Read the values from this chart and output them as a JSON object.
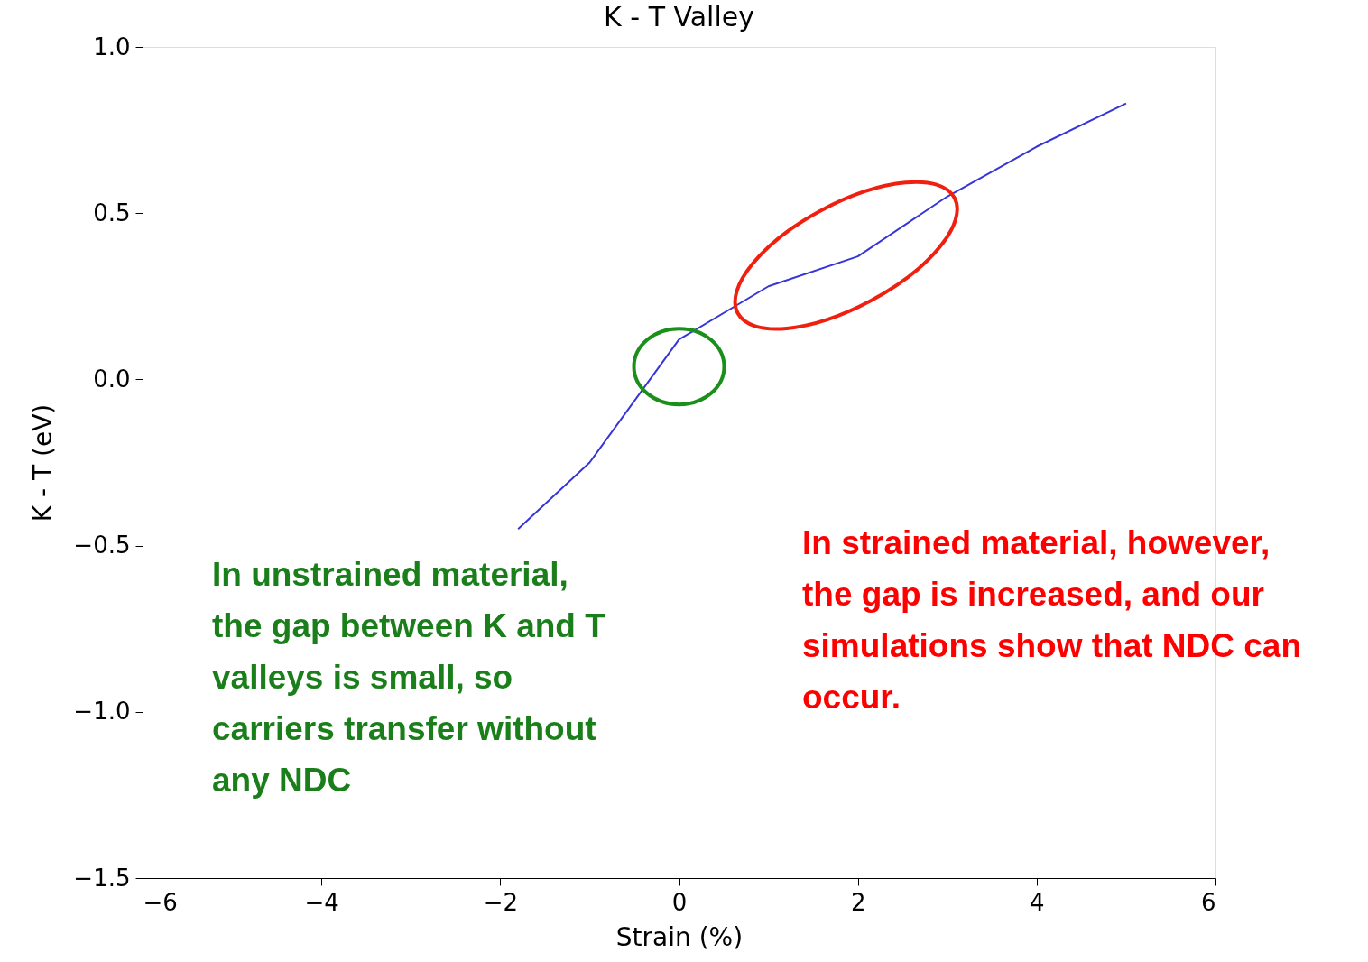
{
  "chart_data": {
    "type": "line",
    "title": "K - T Valley",
    "xlabel": "Strain (%)",
    "ylabel": "K - T (eV)",
    "x": [
      -1.8,
      -1,
      0,
      1,
      2,
      3,
      4,
      5
    ],
    "series": [
      {
        "color": "#3535d8",
        "values": [
          -0.45,
          -0.25,
          0.12,
          0.28,
          0.37,
          0.55,
          0.7,
          0.83
        ]
      }
    ],
    "xlim": [
      -6,
      6
    ],
    "xticks": [
      -6,
      -4,
      -2,
      0,
      2,
      4,
      6
    ],
    "ylim": [
      -1.5,
      1.0
    ],
    "yticks": [
      {
        "value": -1.5,
        "label": "−1.5"
      },
      {
        "value": -1.0,
        "label": "−1.0"
      },
      {
        "value": -0.5,
        "label": "−0.5"
      },
      {
        "value": 0.0,
        "label": "0.0"
      },
      {
        "value": 0.5,
        "label": "0.5"
      },
      {
        "value": 1.0,
        "label": "1.0"
      }
    ],
    "grid": false,
    "marker": "none",
    "line_style": "solid",
    "annotations": [
      "In unstrained material,\nthe gap between K and T\nvalleys is small, so\ncarriers transfer without\nany NDC",
      "In strained material, however,\nthe gap is increased, and our\nsimulations show that NDC can\noccur."
    ]
  }
}
